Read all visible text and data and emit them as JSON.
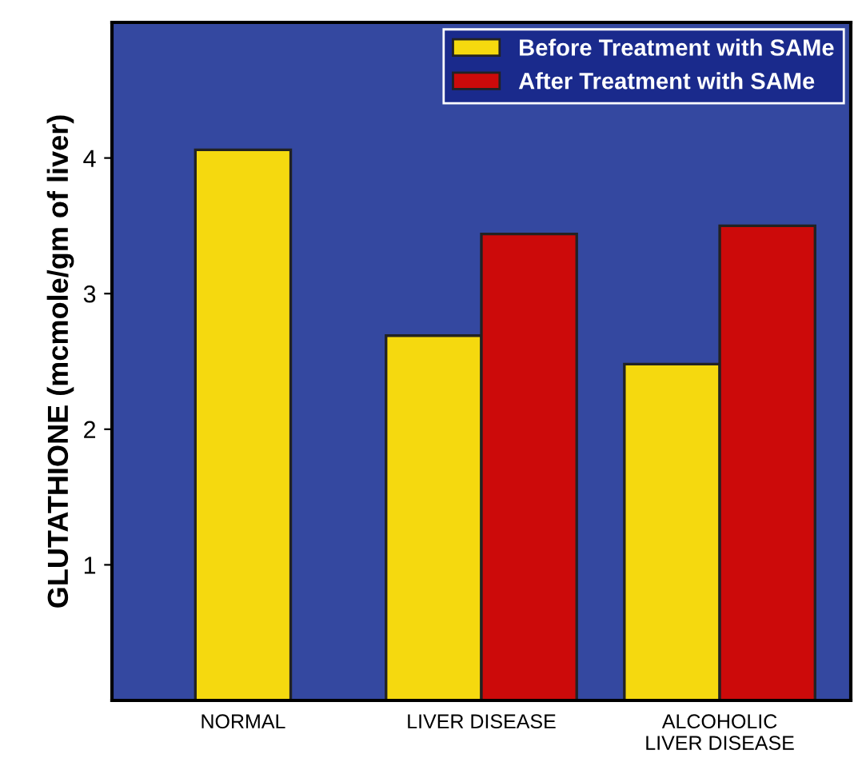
{
  "chart_data": {
    "type": "bar",
    "ylabel": "GLUTATHIONE (mcmole/gm of liver)",
    "categories": [
      "NORMAL",
      "LIVER DISEASE",
      "ALCOHOLIC\nLIVER DISEASE"
    ],
    "series": [
      {
        "name": "Before Treatment with SAMe",
        "color": "#f5d90f",
        "values": [
          4.06,
          2.69,
          2.48
        ]
      },
      {
        "name": "After Treatment with SAMe",
        "color": "#cc0a0a",
        "values": [
          null,
          3.44,
          3.5
        ]
      }
    ],
    "ylim": [
      0,
      5
    ],
    "yticks": [
      1,
      2,
      3,
      4
    ],
    "grid": false,
    "legend": "top right"
  }
}
